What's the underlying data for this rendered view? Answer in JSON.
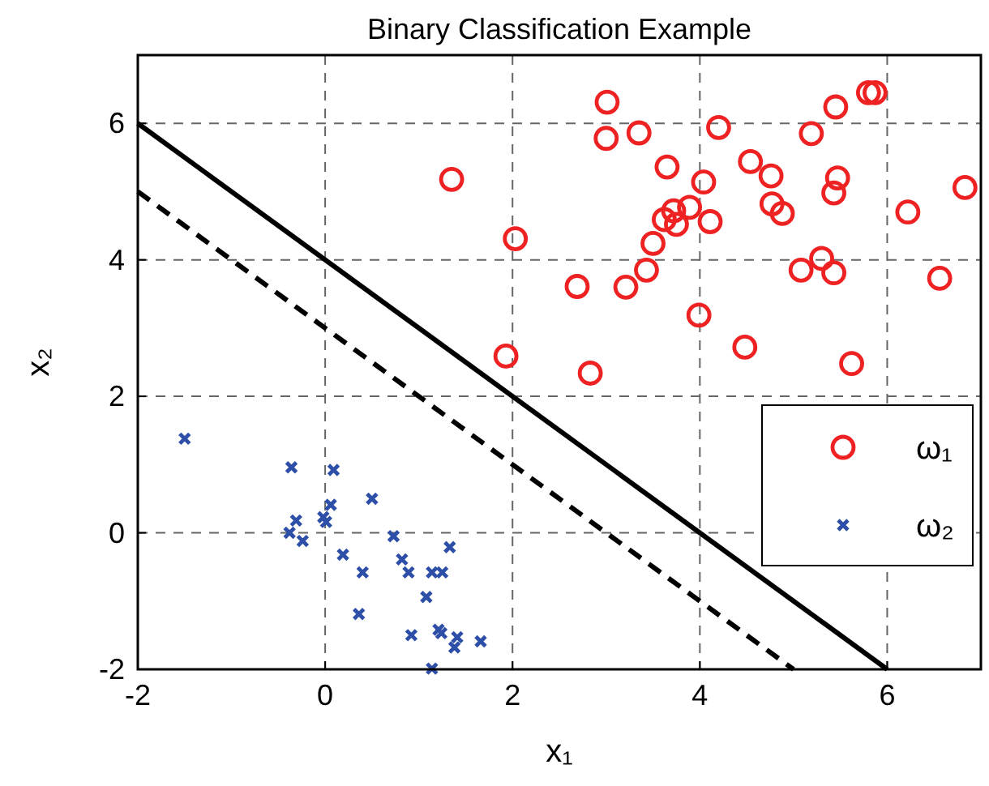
{
  "chart_data": {
    "type": "scatter",
    "title": "Binary Classification Example",
    "xlabel": "x₁",
    "ylabel": "x₂",
    "xlim": [
      -2,
      7
    ],
    "ylim": [
      -2,
      7
    ],
    "xticks": [
      -2,
      0,
      2,
      4,
      6
    ],
    "yticks": [
      -2,
      0,
      2,
      4,
      6
    ],
    "grid": true,
    "legend": "right",
    "series": [
      {
        "name": "ω₁",
        "marker": "circle",
        "color": "#ee2222",
        "x": [
          3.01,
          5.8,
          5.87,
          5.45,
          3.35,
          4.2,
          3.0,
          5.19,
          1.35,
          3.65,
          4.54,
          4.76,
          5.47,
          5.43,
          4.04,
          6.83,
          3.89,
          3.72,
          3.62,
          3.75,
          4.11,
          4.77,
          4.88,
          6.22,
          2.03,
          3.5,
          3.43,
          5.3,
          5.08,
          5.43,
          6.56,
          2.69,
          3.21,
          3.99,
          4.48,
          1.93,
          2.83,
          5.62
        ],
        "values": [
          6.31,
          6.45,
          6.45,
          6.24,
          5.86,
          5.94,
          5.78,
          5.85,
          5.18,
          5.36,
          5.44,
          5.23,
          5.2,
          4.98,
          5.14,
          5.06,
          4.77,
          4.72,
          4.59,
          4.52,
          4.56,
          4.82,
          4.68,
          4.7,
          4.31,
          4.24,
          3.85,
          4.02,
          3.85,
          3.81,
          3.73,
          3.61,
          3.6,
          3.19,
          2.72,
          2.59,
          2.34,
          2.48
        ]
      },
      {
        "name": "ω₂",
        "marker": "cross",
        "color": "#2d4fa8",
        "x": [
          -1.5,
          -0.36,
          0.09,
          0.5,
          0.06,
          -0.31,
          -0.02,
          0.01,
          -0.38,
          -0.24,
          0.19,
          0.73,
          0.4,
          0.82,
          0.89,
          1.33,
          1.14,
          1.25,
          1.08,
          0.36,
          0.92,
          1.21,
          1.24,
          1.41,
          1.38,
          1.66,
          1.14
        ],
        "values": [
          1.38,
          0.96,
          0.92,
          0.5,
          0.41,
          0.18,
          0.23,
          0.16,
          0.0,
          -0.12,
          -0.32,
          -0.05,
          -0.58,
          -0.39,
          -0.58,
          -0.21,
          -0.58,
          -0.58,
          -0.94,
          -1.19,
          -1.5,
          -1.42,
          -1.47,
          -1.53,
          -1.68,
          -1.59,
          -1.99
        ]
      },
      {
        "type": "line",
        "line_style": "solid",
        "color": "#000000",
        "x": [
          -2,
          6
        ],
        "values": [
          6,
          -2
        ]
      },
      {
        "type": "line",
        "line_style": "dashed",
        "color": "#000000",
        "x": [
          -2,
          5
        ],
        "values": [
          5,
          -2
        ]
      }
    ]
  }
}
